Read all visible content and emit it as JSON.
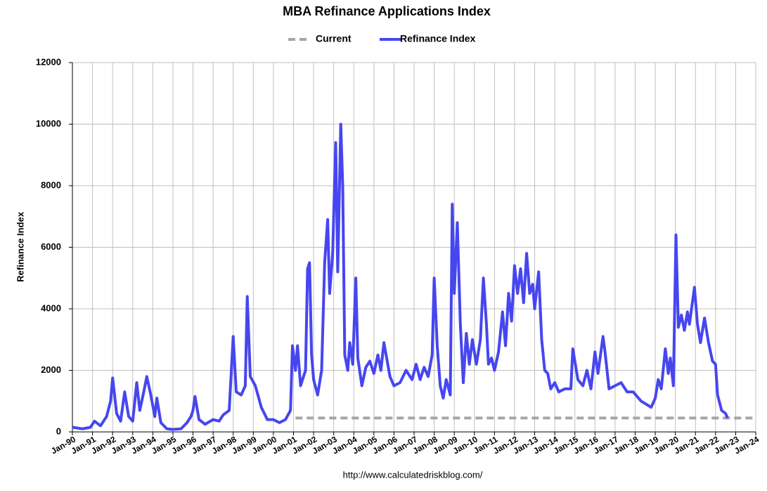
{
  "chart_data": {
    "type": "line",
    "title": "MBA Refinance Applications Index",
    "y_label": "Refinance Index",
    "source": "http://www.calculatedriskblog.com/",
    "xlim": [
      1990,
      2024
    ],
    "ylim": [
      0,
      12000
    ],
    "yticks": [
      0,
      2000,
      4000,
      6000,
      8000,
      10000,
      12000
    ],
    "xticks": [
      {
        "value": 1990,
        "label": "Jan-90"
      },
      {
        "value": 1991,
        "label": "Jan-91"
      },
      {
        "value": 1992,
        "label": "Jan-92"
      },
      {
        "value": 1993,
        "label": "Jan-93"
      },
      {
        "value": 1994,
        "label": "Jan-94"
      },
      {
        "value": 1995,
        "label": "Jan-95"
      },
      {
        "value": 1996,
        "label": "Jan-96"
      },
      {
        "value": 1997,
        "label": "Jan-97"
      },
      {
        "value": 1998,
        "label": "Jan-98"
      },
      {
        "value": 1999,
        "label": "Jan-99"
      },
      {
        "value": 2000,
        "label": "Jan-00"
      },
      {
        "value": 2001,
        "label": "Jan-01"
      },
      {
        "value": 2002,
        "label": "Jan-02"
      },
      {
        "value": 2003,
        "label": "Jan-03"
      },
      {
        "value": 2004,
        "label": "Jan-04"
      },
      {
        "value": 2005,
        "label": "Jan-05"
      },
      {
        "value": 2006,
        "label": "Jan-06"
      },
      {
        "value": 2007,
        "label": "Jan-07"
      },
      {
        "value": 2008,
        "label": "Jan-08"
      },
      {
        "value": 2009,
        "label": "Jan-09"
      },
      {
        "value": 2010,
        "label": "Jan-10"
      },
      {
        "value": 2011,
        "label": "Jan-11"
      },
      {
        "value": 2012,
        "label": "Jan-12"
      },
      {
        "value": 2013,
        "label": "Jan-13"
      },
      {
        "value": 2014,
        "label": "Jan-14"
      },
      {
        "value": 2015,
        "label": "Jan-15"
      },
      {
        "value": 2016,
        "label": "Jan-16"
      },
      {
        "value": 2017,
        "label": "Jan-17"
      },
      {
        "value": 2018,
        "label": "Jan-18"
      },
      {
        "value": 2019,
        "label": "Jan-19"
      },
      {
        "value": 2020,
        "label": "Jan-20"
      },
      {
        "value": 2021,
        "label": "Jan-21"
      },
      {
        "value": 2022,
        "label": "Jan-22"
      },
      {
        "value": 2023,
        "label": "Jan-23"
      },
      {
        "value": 2024,
        "label": "Jan-24"
      }
    ],
    "grid": true,
    "legend": "top",
    "series": [
      {
        "name": "Current",
        "color": "#a6a6a6",
        "style": "dashed",
        "x": [
          2001.1,
          2024
        ],
        "values": [
          450,
          450
        ]
      },
      {
        "name": "Refinance Index",
        "color": "#4646f0",
        "style": "solid",
        "x": [
          1990.0,
          1990.5,
          1990.9,
          1991.1,
          1991.4,
          1991.7,
          1991.9,
          1992.0,
          1992.2,
          1992.4,
          1992.6,
          1992.8,
          1993.0,
          1993.2,
          1993.35,
          1993.55,
          1993.7,
          1993.9,
          1994.1,
          1994.2,
          1994.4,
          1994.7,
          1995.0,
          1995.4,
          1995.7,
          1995.9,
          1996.0,
          1996.1,
          1996.3,
          1996.6,
          1997.0,
          1997.3,
          1997.5,
          1997.8,
          1998.0,
          1998.15,
          1998.4,
          1998.6,
          1998.7,
          1998.85,
          1999.1,
          1999.4,
          1999.7,
          2000.0,
          2000.3,
          2000.6,
          2000.85,
          2000.95,
          2001.1,
          2001.2,
          2001.35,
          2001.6,
          2001.7,
          2001.8,
          2001.9,
          2002.0,
          2002.2,
          2002.4,
          2002.55,
          2002.7,
          2002.8,
          2002.95,
          2003.1,
          2003.2,
          2003.35,
          2003.45,
          2003.55,
          2003.7,
          2003.8,
          2003.95,
          2004.1,
          2004.2,
          2004.4,
          2004.6,
          2004.8,
          2005.0,
          2005.2,
          2005.35,
          2005.5,
          2005.8,
          2006.0,
          2006.3,
          2006.6,
          2006.9,
          2007.1,
          2007.3,
          2007.5,
          2007.7,
          2007.9,
          2008.0,
          2008.15,
          2008.3,
          2008.45,
          2008.6,
          2008.8,
          2008.9,
          2009.0,
          2009.15,
          2009.3,
          2009.45,
          2009.6,
          2009.75,
          2009.9,
          2010.1,
          2010.3,
          2010.45,
          2010.6,
          2010.7,
          2010.85,
          2011.0,
          2011.2,
          2011.4,
          2011.55,
          2011.7,
          2011.85,
          2012.0,
          2012.15,
          2012.3,
          2012.45,
          2012.6,
          2012.75,
          2012.9,
          2013.0,
          2013.2,
          2013.35,
          2013.5,
          2013.65,
          2013.8,
          2014.0,
          2014.2,
          2014.5,
          2014.8,
          2014.9,
          2015.15,
          2015.4,
          2015.6,
          2015.8,
          2016.0,
          2016.15,
          2016.4,
          2016.5,
          2016.7,
          2017.0,
          2017.3,
          2017.6,
          2017.9,
          2018.3,
          2018.8,
          2019.0,
          2019.15,
          2019.3,
          2019.5,
          2019.65,
          2019.75,
          2019.9,
          2020.03,
          2020.15,
          2020.3,
          2020.45,
          2020.6,
          2020.7,
          2020.95,
          2021.1,
          2021.25,
          2021.45,
          2021.65,
          2021.85,
          2022.0,
          2022.1,
          2022.3,
          2022.5,
          2022.6
        ],
        "values": [
          150,
          100,
          150,
          350,
          200,
          500,
          1000,
          1750,
          600,
          350,
          1300,
          500,
          350,
          1600,
          700,
          1300,
          1800,
          1200,
          500,
          1100,
          300,
          100,
          80,
          100,
          300,
          500,
          700,
          1150,
          400,
          250,
          400,
          350,
          550,
          700,
          3100,
          1300,
          1200,
          1500,
          4400,
          1800,
          1500,
          800,
          400,
          400,
          300,
          400,
          700,
          2800,
          2000,
          2800,
          1500,
          2000,
          5300,
          5500,
          2500,
          1700,
          1200,
          2000,
          5500,
          6900,
          4500,
          5800,
          9400,
          5200,
          10000,
          8000,
          2500,
          2000,
          2900,
          2200,
          5000,
          2400,
          1500,
          2100,
          2300,
          1900,
          2500,
          2000,
          2900,
          1800,
          1500,
          1600,
          2000,
          1700,
          2200,
          1700,
          2100,
          1800,
          2500,
          5000,
          2800,
          1500,
          1100,
          1700,
          1200,
          7400,
          4500,
          6800,
          3500,
          1600,
          3200,
          2200,
          3000,
          2200,
          3000,
          5000,
          3500,
          2200,
          2400,
          2000,
          2600,
          3900,
          2800,
          4500,
          3600,
          5400,
          4500,
          5300,
          4200,
          5800,
          4500,
          4800,
          4000,
          5200,
          3000,
          2000,
          1900,
          1400,
          1600,
          1300,
          1400,
          1400,
          2700,
          1700,
          1500,
          2000,
          1400,
          2600,
          1900,
          3100,
          2600,
          1400,
          1500,
          1600,
          1300,
          1300,
          1000,
          800,
          1100,
          1700,
          1400,
          2700,
          1900,
          2400,
          1500,
          6400,
          3400,
          3800,
          3300,
          3900,
          3500,
          4700,
          3500,
          2900,
          3700,
          2900,
          2300,
          2200,
          1200,
          700,
          600,
          450
        ]
      }
    ]
  }
}
